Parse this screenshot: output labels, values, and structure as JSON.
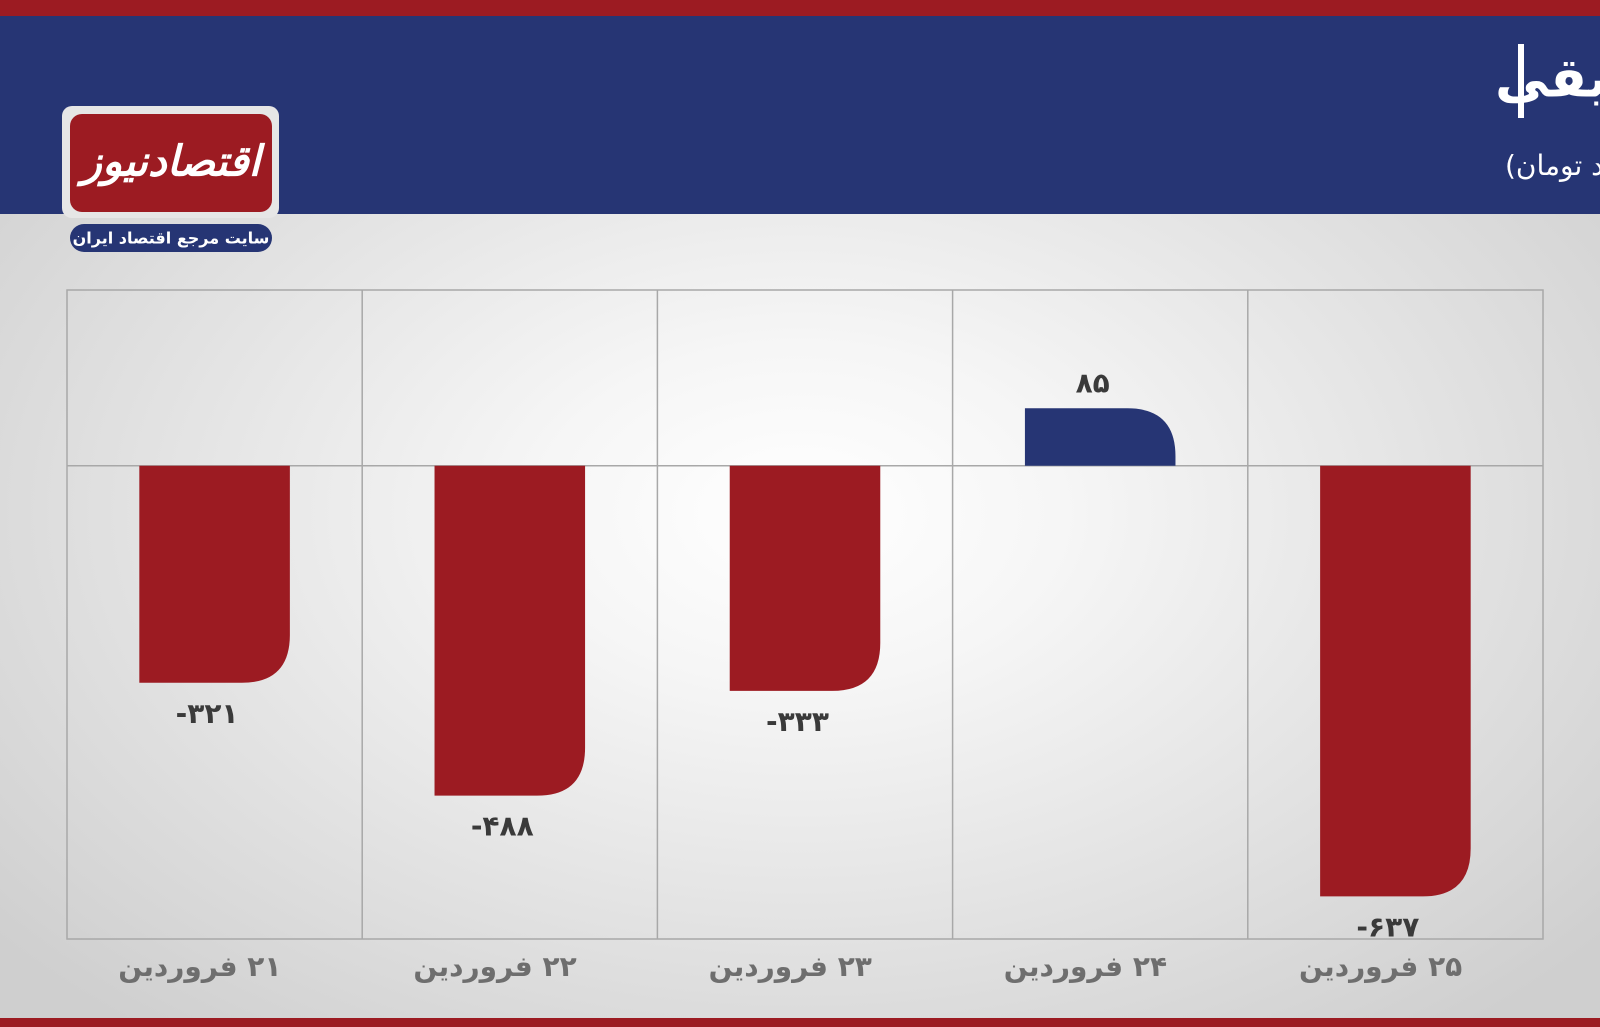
{
  "brand": {
    "logo": "اقتصادنیوز",
    "tagline": "سایت مرجع اقتصاد ایران"
  },
  "chart_data": {
    "type": "bar",
    "title": "روند هفته خروج پول‌های حقیقی",
    "subtitle": "(واحد:میلیارد تومان)",
    "categories": [
      "۲۱ فروردین",
      "۲۲ فروردین",
      "۲۳ فروردین",
      "۲۴ فروردین",
      "۲۵ فروردین"
    ],
    "values": [
      -321,
      -488,
      -333,
      85,
      -637
    ],
    "value_labels": [
      "-۳۲۱",
      "-۴۸۸",
      "-۳۳۳",
      "۸۵",
      "-۶۳۷"
    ],
    "positive_color": "#263574",
    "negative_color": "#9c1b22",
    "ylim": [
      -700,
      260
    ],
    "grid": true
  }
}
